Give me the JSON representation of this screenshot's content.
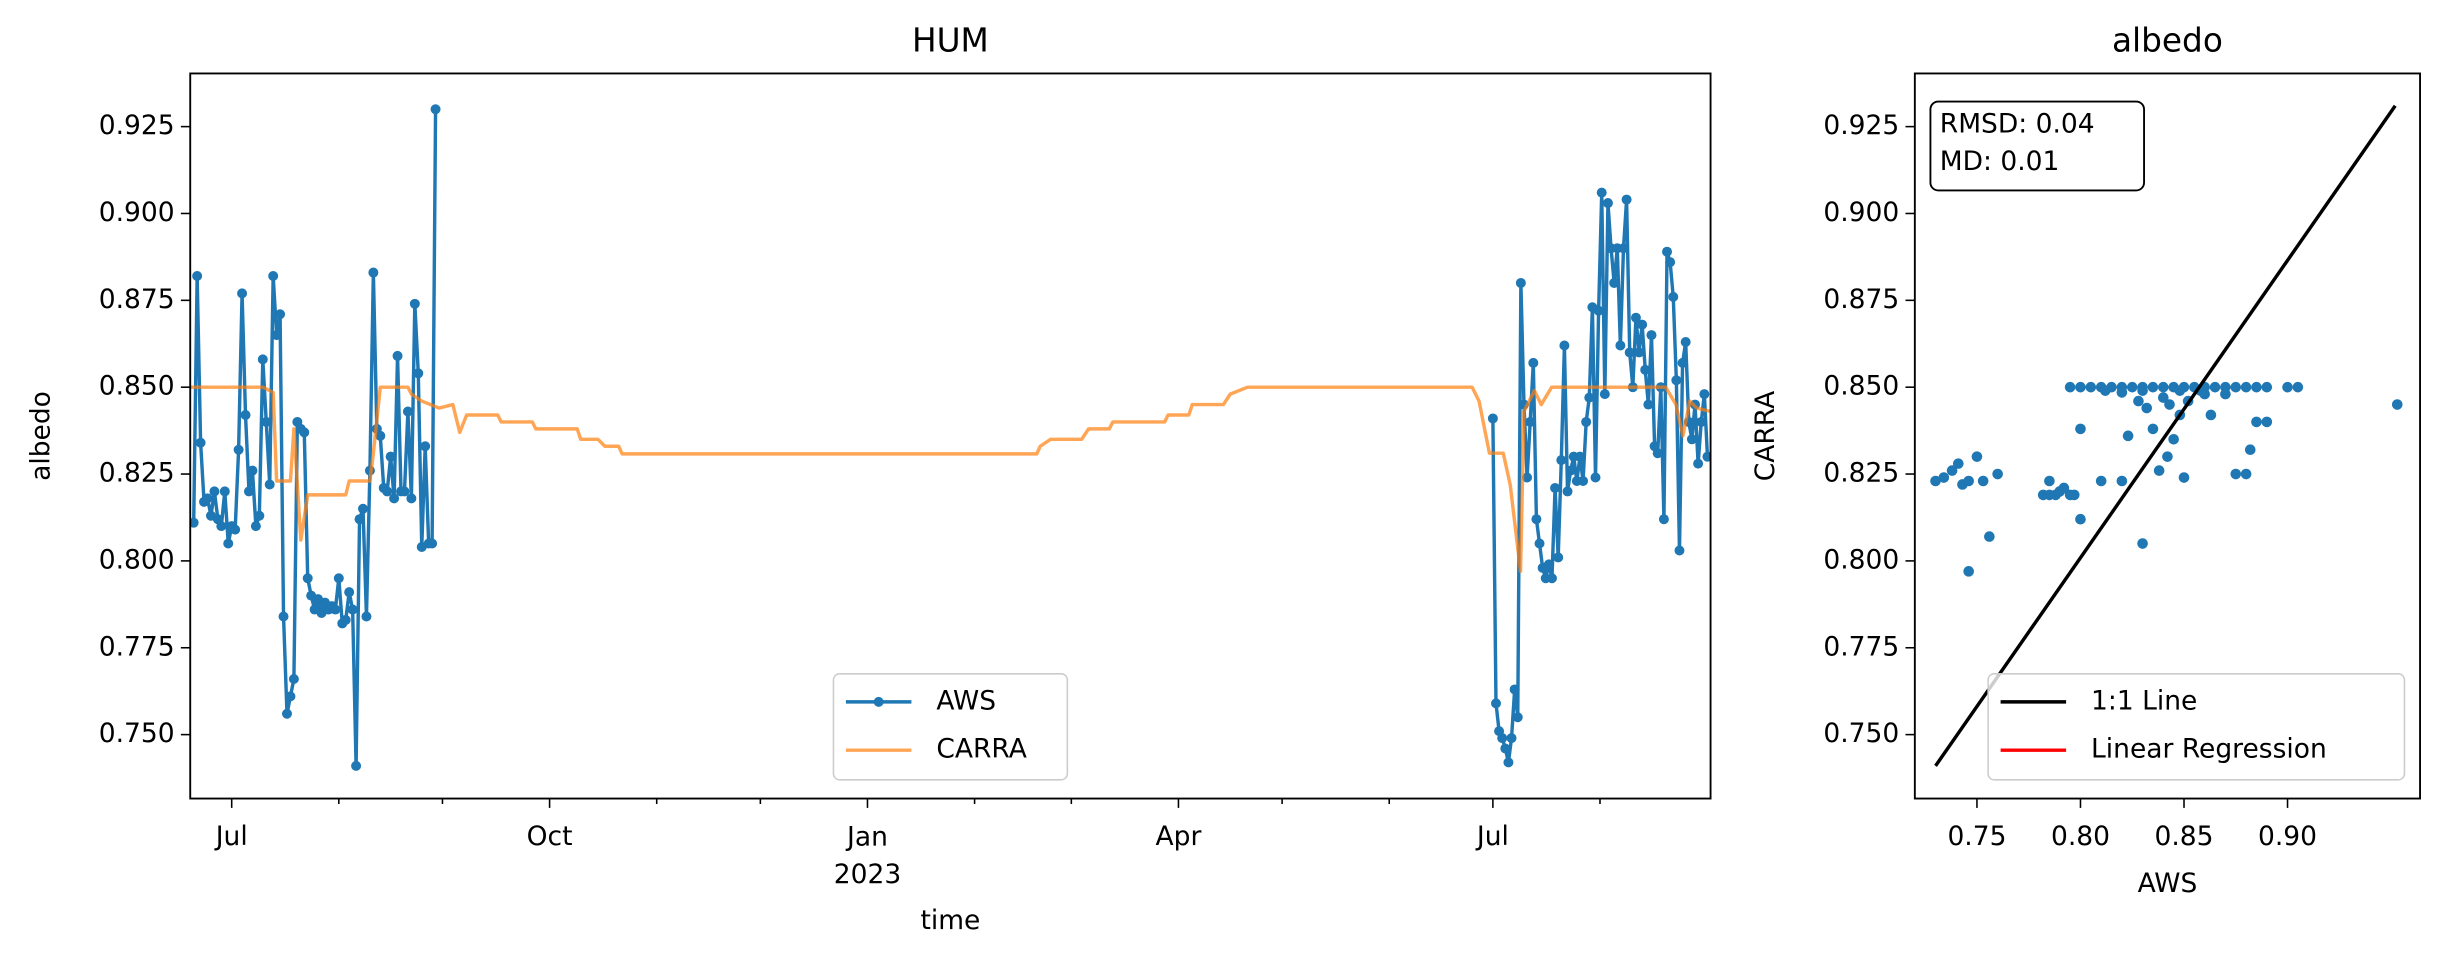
{
  "chart_data": [
    {
      "type": "line",
      "title": "HUM",
      "xlabel": "time",
      "ylabel": "albedo",
      "xlim": [
        -196,
        244
      ],
      "xticks": [
        {
          "value": -184,
          "label": "Jul"
        },
        {
          "value": -92,
          "label": "Oct"
        },
        {
          "value": 0,
          "label": "Jan\n2023"
        },
        {
          "value": 90,
          "label": "Apr"
        },
        {
          "value": 181,
          "label": "Jul"
        }
      ],
      "xminorticks": [
        -153,
        -123,
        -61,
        -31,
        31,
        59,
        120,
        151,
        212
      ],
      "ylim": [
        0.7316,
        0.9403
      ],
      "yticks": [
        {
          "value": 0.75,
          "label": "0.750"
        },
        0.775,
        {
          "value": 0.8,
          "label": "0.800"
        },
        0.825,
        {
          "value": 0.85,
          "label": "0.850"
        },
        0.875,
        {
          "value": 0.9,
          "label": "0.900"
        },
        0.925
      ],
      "legend": "lower center",
      "series": [
        {
          "name": "AWS",
          "color": "#1f77b4",
          "marker": true,
          "x": [
            -195,
            -194,
            -193,
            -192,
            -191,
            -190,
            -189,
            -188,
            -187,
            -186,
            -185,
            -184,
            -183,
            -182,
            -181,
            -180,
            -179,
            -178,
            -177,
            -176,
            -175,
            -174,
            -173,
            -172,
            -171,
            -170,
            -169,
            -168,
            -167,
            -166,
            -165,
            -164,
            -163,
            -162,
            -161,
            -160,
            -159,
            -158,
            -157,
            -156,
            -155,
            -154,
            -153,
            -152,
            -151,
            -150,
            -149,
            -148,
            -147,
            -146,
            -145,
            -144,
            -143,
            -142,
            -141,
            -140,
            -139,
            -138,
            -137,
            -136,
            -135,
            -134,
            -133,
            -132,
            -131,
            -130,
            -129,
            -128,
            -127,
            -126,
            -125,
            -50,
            181,
            181.9,
            182.8,
            183.7,
            184.6,
            185.5,
            186.4,
            187.3,
            188.2,
            189.1,
            190,
            190.9,
            191.8,
            192.7,
            193.6,
            194.5,
            195.4,
            196.3,
            197.2,
            198.1,
            199,
            199.9,
            200.8,
            201.7,
            202.6,
            203.5,
            204.4,
            205.3,
            206.2,
            207.1,
            208,
            208.9,
            209.8,
            210.7,
            211.6,
            212.5,
            213.4,
            214.3,
            215.2,
            216.1,
            217,
            217.9,
            218.8,
            219.7,
            220.6,
            221.5,
            222.4,
            223.3,
            224.2,
            225.1,
            226,
            226.9,
            227.8,
            228.7,
            229.6,
            230.5,
            231.4,
            232.3,
            233.2,
            234.1,
            235,
            235.9,
            236.8,
            237.7,
            238.6,
            239.5,
            240.4,
            241.3,
            242.2,
            243.1
          ],
          "values": [
            0.811,
            0.882,
            0.834,
            0.817,
            0.818,
            0.813,
            0.82,
            0.812,
            0.81,
            0.82,
            0.805,
            0.81,
            0.809,
            0.832,
            0.877,
            0.842,
            0.82,
            0.826,
            0.81,
            0.813,
            0.858,
            0.84,
            0.822,
            0.882,
            0.865,
            0.871,
            0.784,
            0.756,
            0.761,
            0.766,
            0.84,
            0.838,
            0.837,
            0.795,
            0.79,
            0.786,
            0.789,
            0.785,
            0.788,
            0.786,
            0.787,
            0.786,
            0.795,
            0.782,
            0.783,
            0.791,
            0.786,
            0.741,
            0.812,
            0.815,
            0.784,
            0.826,
            0.883,
            0.838,
            0.836,
            0.821,
            0.82,
            0.83,
            0.818,
            0.859,
            0.82,
            0.82,
            0.843,
            0.818,
            0.874,
            0.854,
            0.804,
            0.833,
            0.805,
            0.805,
            0.93,
            null,
            0.841,
            0.759,
            0.751,
            0.749,
            0.746,
            0.742,
            0.749,
            0.763,
            0.755,
            0.88,
            0.845,
            0.824,
            0.84,
            0.857,
            0.812,
            0.805,
            0.798,
            0.795,
            0.799,
            0.795,
            0.821,
            0.801,
            0.829,
            0.862,
            0.82,
            0.826,
            0.83,
            0.823,
            0.83,
            0.823,
            0.84,
            0.847,
            0.873,
            0.824,
            0.872,
            0.906,
            0.848,
            0.903,
            0.89,
            0.88,
            0.89,
            0.862,
            0.89,
            0.904,
            0.86,
            0.85,
            0.87,
            0.86,
            0.868,
            0.855,
            0.845,
            0.865,
            0.833,
            0.831,
            0.85,
            0.812,
            0.889,
            0.886,
            0.876,
            0.852,
            0.803,
            0.857,
            0.863,
            0.84,
            0.835,
            0.845,
            0.828,
            0.84,
            0.848,
            0.83
          ]
        },
        {
          "name": "CARRA",
          "color": "#ff7f0e",
          "alpha": 0.7,
          "marker": false,
          "x": [
            -196,
            -175,
            -172,
            -171,
            -167,
            -166,
            -164,
            -162,
            -151,
            -150,
            -144,
            -143,
            -141,
            -133,
            -132,
            -129,
            -124,
            -120,
            -118,
            -116,
            -107,
            -106,
            -97,
            -96,
            -84,
            -83,
            -78,
            -76,
            -72,
            -71,
            49,
            50,
            53,
            62,
            64,
            70,
            71,
            86,
            87,
            93,
            94,
            103,
            105,
            110,
            175,
            177,
            180,
            184,
            186,
            189,
            190,
            193,
            195,
            198,
            231,
            234,
            236,
            238,
            240,
            244
          ],
          "values": [
            0.85,
            0.85,
            0.8485,
            0.823,
            0.823,
            0.838,
            0.806,
            0.819,
            0.819,
            0.823,
            0.823,
            0.831,
            0.85,
            0.85,
            0.848,
            0.846,
            0.844,
            0.845,
            0.837,
            0.842,
            0.842,
            0.84,
            0.84,
            0.838,
            0.838,
            0.835,
            0.835,
            0.833,
            0.833,
            0.8308,
            0.8308,
            0.833,
            0.835,
            0.835,
            0.838,
            0.838,
            0.84,
            0.84,
            0.842,
            0.842,
            0.845,
            0.845,
            0.848,
            0.85,
            0.85,
            0.846,
            0.831,
            0.831,
            0.822,
            0.797,
            0.843,
            0.849,
            0.845,
            0.85,
            0.85,
            0.845,
            0.836,
            0.846,
            0.844,
            0.843
          ]
        }
      ]
    },
    {
      "type": "scatter",
      "title": "albedo",
      "xlabel": "AWS",
      "ylabel": "CARRA",
      "xlim": [
        0.72,
        0.964
      ],
      "xticks": [
        0.75,
        {
          "value": 0.8,
          "label": "0.80"
        },
        0.85,
        {
          "value": 0.9,
          "label": "0.90"
        }
      ],
      "ylim": [
        0.7316,
        0.9403
      ],
      "yticks": [
        {
          "value": 0.75,
          "label": "0.750"
        },
        0.775,
        {
          "value": 0.8,
          "label": "0.800"
        },
        0.825,
        {
          "value": 0.85,
          "label": "0.850"
        },
        0.875,
        {
          "value": 0.9,
          "label": "0.900"
        },
        0.925
      ],
      "annotation": [
        "RMSD: 0.04",
        "MD: 0.01"
      ],
      "legend": "lower right",
      "points": {
        "color": "#1f77b4",
        "x": [
          0.73,
          0.734,
          0.738,
          0.741,
          0.743,
          0.746,
          0.75,
          0.753,
          0.756,
          0.76,
          0.746,
          0.782,
          0.785,
          0.788,
          0.79,
          0.792,
          0.795,
          0.797,
          0.785,
          0.8,
          0.8,
          0.795,
          0.8,
          0.805,
          0.81,
          0.815,
          0.82,
          0.825,
          0.83,
          0.835,
          0.84,
          0.845,
          0.85,
          0.855,
          0.86,
          0.865,
          0.87,
          0.875,
          0.88,
          0.885,
          0.89,
          0.9,
          0.905,
          0.812,
          0.83,
          0.848,
          0.858,
          0.81,
          0.82,
          0.823,
          0.828,
          0.832,
          0.835,
          0.84,
          0.843,
          0.848,
          0.852,
          0.86,
          0.863,
          0.845,
          0.838,
          0.842,
          0.85,
          0.83,
          0.875,
          0.88,
          0.885,
          0.89,
          0.882,
          0.82,
          0.87,
          0.953
        ],
        "values": [
          0.823,
          0.824,
          0.826,
          0.828,
          0.822,
          0.823,
          0.83,
          0.823,
          0.807,
          0.825,
          0.797,
          0.819,
          0.819,
          0.819,
          0.82,
          0.821,
          0.819,
          0.819,
          0.823,
          0.812,
          0.838,
          0.85,
          0.85,
          0.85,
          0.85,
          0.85,
          0.85,
          0.85,
          0.85,
          0.85,
          0.85,
          0.85,
          0.85,
          0.85,
          0.85,
          0.85,
          0.85,
          0.85,
          0.85,
          0.85,
          0.85,
          0.85,
          0.85,
          0.849,
          0.849,
          0.849,
          0.849,
          0.823,
          0.823,
          0.836,
          0.846,
          0.844,
          0.838,
          0.847,
          0.845,
          0.842,
          0.846,
          0.848,
          0.842,
          0.835,
          0.826,
          0.83,
          0.824,
          0.805,
          0.825,
          0.825,
          0.84,
          0.84,
          0.832,
          0.8485,
          0.848,
          0.845
        ]
      },
      "series": [
        {
          "name": "1:1 Line",
          "color": "#000000",
          "x": [
            0.73,
            0.952
          ],
          "values": [
            0.741,
            0.931
          ]
        },
        {
          "name": "Linear Regression",
          "color": "#ff0000",
          "x": [],
          "values": []
        }
      ]
    }
  ]
}
